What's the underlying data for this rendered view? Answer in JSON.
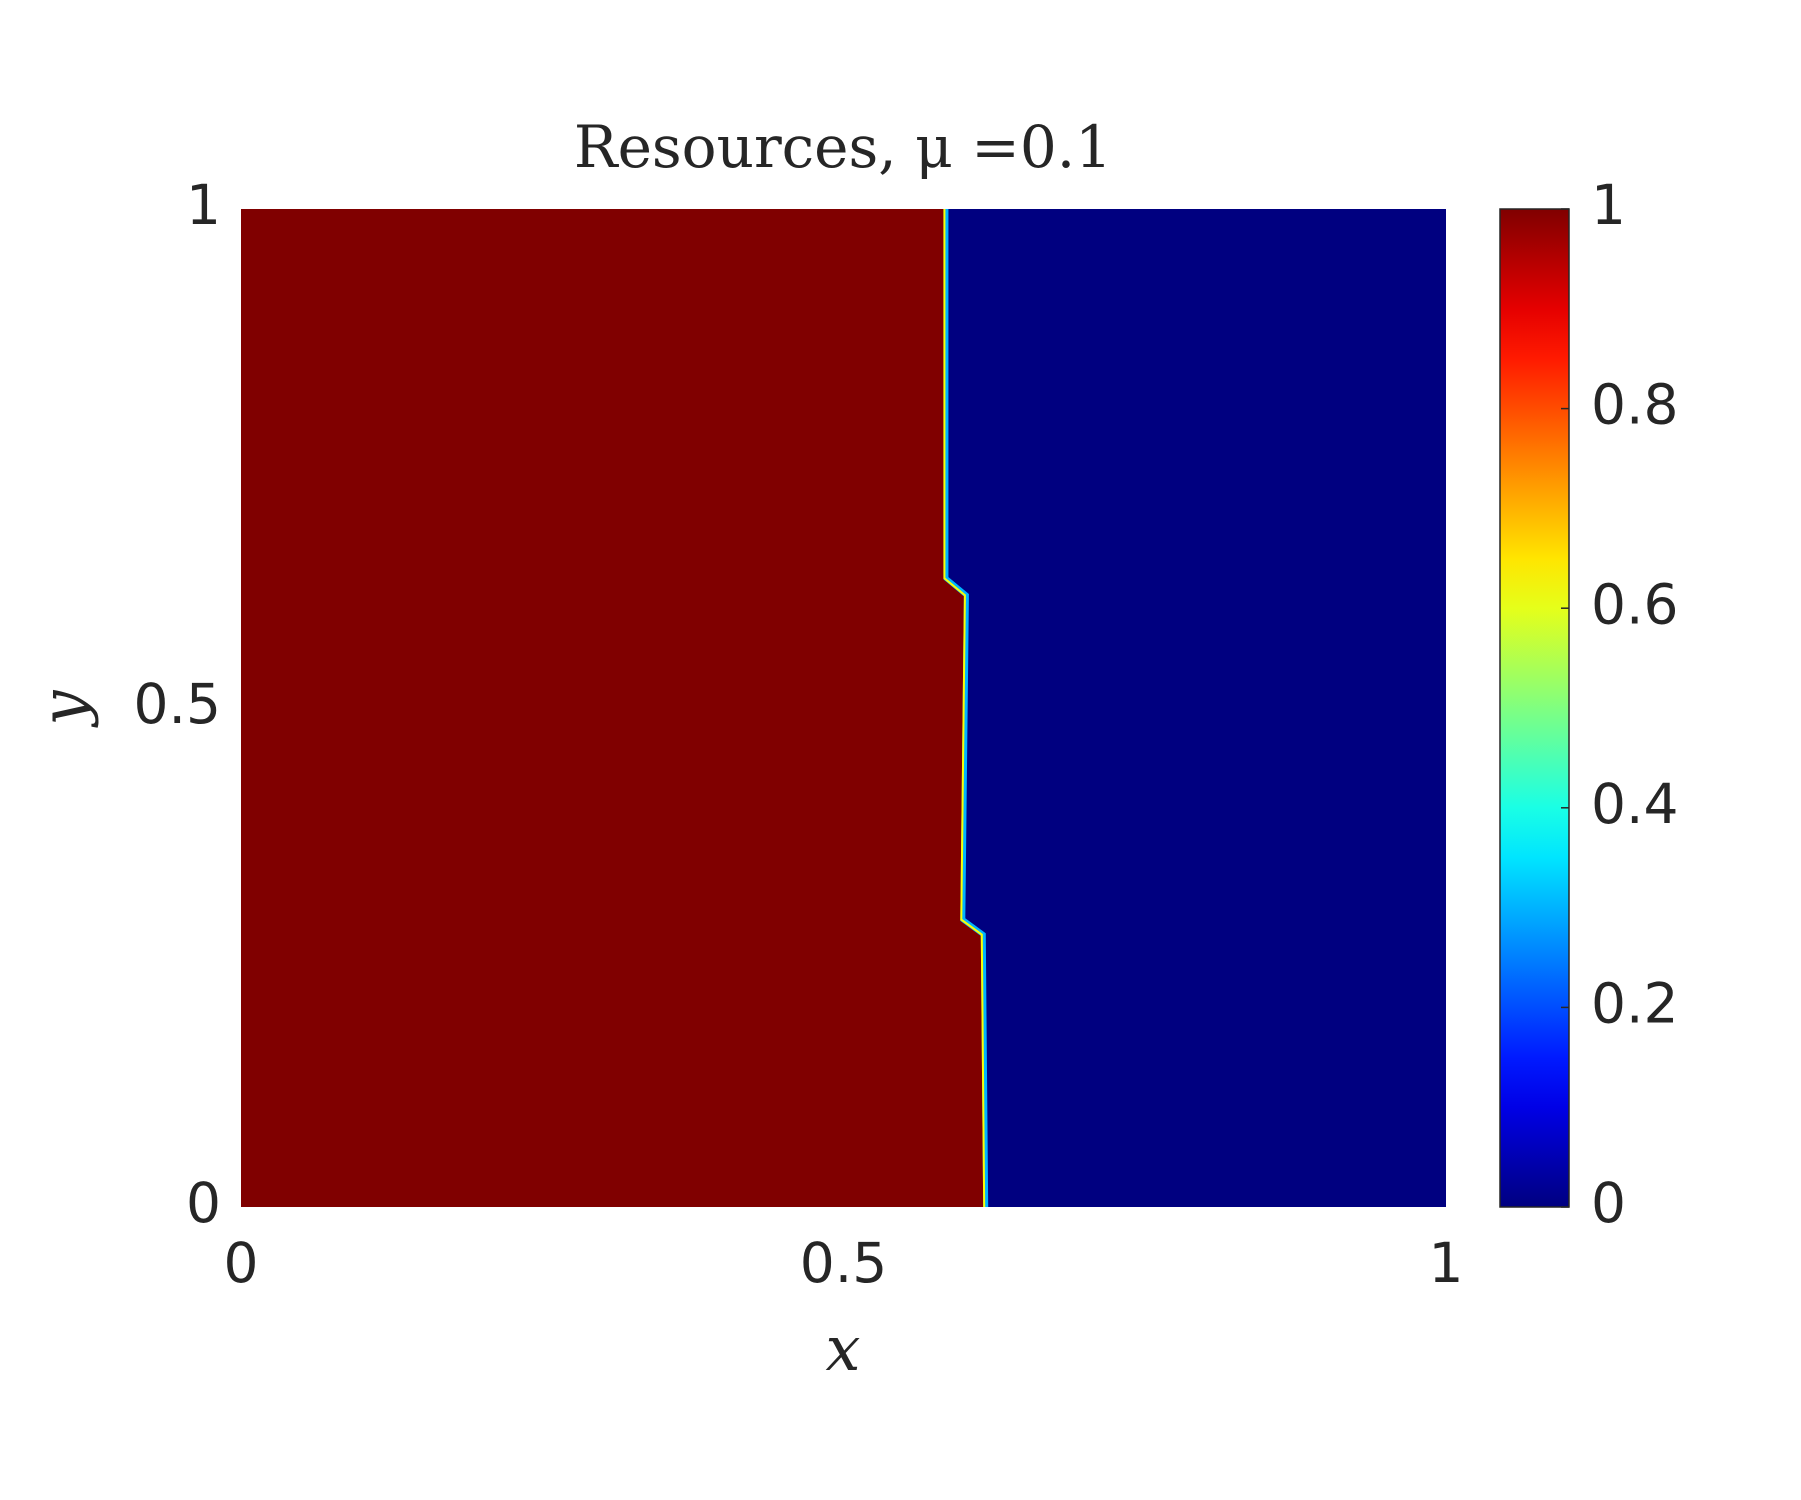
{
  "chart_data": {
    "type": "heatmap",
    "title": "Resources, μ =0.1",
    "xlabel": "x",
    "ylabel": "y",
    "xlim": [
      0,
      1
    ],
    "ylim": [
      0,
      1
    ],
    "xticks": [
      0,
      0.5,
      1
    ],
    "yticks": [
      0,
      0.5,
      1
    ],
    "colormap": "jet",
    "clim": [
      0,
      1
    ],
    "cticks": [
      0,
      0.2,
      0.4,
      0.6,
      0.8,
      1
    ],
    "left_value": 1,
    "right_value": 0,
    "interface": {
      "x": [
        0.585,
        0.585,
        0.602,
        0.599,
        0.616,
        0.618
      ],
      "y": [
        1,
        0.63,
        0.613,
        0.288,
        0.273,
        0
      ]
    }
  }
}
